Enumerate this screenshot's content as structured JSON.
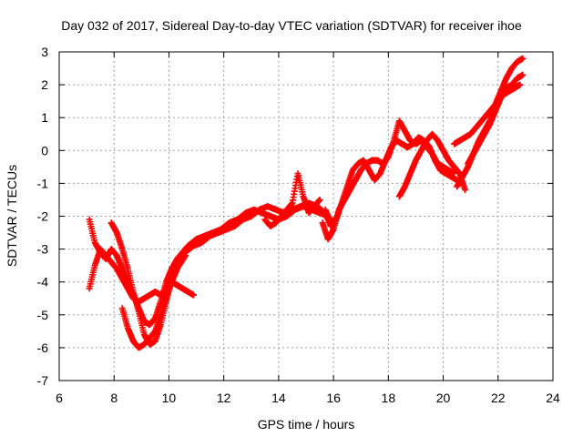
{
  "chart_data": {
    "type": "scatter",
    "title": "Day 032 of 2017, Sidereal Day-to-day VTEC variation (SDTVAR) for receiver ihoe",
    "xlabel": "GPS time / hours",
    "ylabel": "SDTVAR / TECUs",
    "xlim": [
      6,
      24
    ],
    "ylim": [
      -7,
      3
    ],
    "xticks": [
      6,
      8,
      10,
      12,
      14,
      16,
      18,
      20,
      22,
      24
    ],
    "yticks": [
      -7,
      -6,
      -5,
      -4,
      -3,
      -2,
      -1,
      0,
      1,
      2,
      3
    ],
    "grid": true,
    "marker": "+",
    "color": "#ff0000",
    "series": [
      {
        "x": [
          7.1,
          7.3,
          7.5,
          7.7,
          7.9,
          8.1,
          8.3,
          8.5,
          8.7,
          8.9,
          9.1,
          9.3,
          9.5,
          9.7,
          9.9,
          10.1,
          10.3,
          10.5,
          10.7,
          10.9
        ],
        "y": [
          -4.2,
          -3.5,
          -3.0,
          -3.2,
          -3.4,
          -3.6,
          -3.9,
          -4.2,
          -4.5,
          -4.6,
          -4.5,
          -4.4,
          -4.3,
          -4.4,
          -4.2,
          -4.0,
          -4.1,
          -4.2,
          -4.3,
          -4.4
        ]
      },
      {
        "x": [
          7.1,
          7.3,
          7.5,
          7.7,
          7.9,
          8.1,
          8.3,
          8.5,
          8.7,
          8.9,
          9.1,
          9.3,
          9.5,
          9.7,
          9.9,
          10.1,
          10.3,
          10.5,
          10.7,
          11.0,
          11.3,
          11.6,
          11.9,
          12.2,
          12.5,
          12.8,
          13.1,
          13.4,
          13.7,
          14.0,
          14.3,
          14.6,
          14.9,
          15.2,
          15.5,
          15.8,
          16.0
        ],
        "y": [
          -2.1,
          -2.8,
          -3.1,
          -3.3,
          -3.0,
          -3.2,
          -3.6,
          -4.0,
          -4.4,
          -4.8,
          -5.2,
          -5.3,
          -5.1,
          -4.6,
          -4.0,
          -3.6,
          -3.3,
          -3.1,
          -2.9,
          -2.7,
          -2.6,
          -2.5,
          -2.4,
          -2.2,
          -2.1,
          -1.9,
          -1.8,
          -1.9,
          -2.0,
          -2.1,
          -2.0,
          -1.8,
          -1.7,
          -1.8,
          -1.9,
          -2.0,
          -2.2
        ]
      },
      {
        "x": [
          7.9,
          8.1,
          8.3,
          8.5,
          8.7,
          8.9,
          9.1,
          9.3,
          9.5,
          9.7,
          9.9,
          10.1,
          10.3,
          10.6,
          10.9,
          11.2,
          11.5,
          11.8,
          12.1,
          12.4,
          12.7,
          13.0,
          13.3,
          13.6,
          13.9,
          14.2,
          14.5,
          14.8,
          15.1,
          15.4,
          15.7,
          15.9
        ],
        "y": [
          -2.2,
          -2.5,
          -3.0,
          -3.6,
          -4.3,
          -4.9,
          -5.6,
          -5.9,
          -5.8,
          -5.3,
          -4.6,
          -3.9,
          -3.4,
          -3.1,
          -2.9,
          -2.8,
          -2.6,
          -2.5,
          -2.4,
          -2.3,
          -2.1,
          -2.0,
          -1.8,
          -1.7,
          -1.8,
          -1.9,
          -1.8,
          -1.7,
          -1.6,
          -1.7,
          -1.9,
          -2.3
        ]
      },
      {
        "x": [
          8.3,
          8.5,
          8.7,
          8.9,
          9.1,
          9.3,
          9.5,
          9.7,
          9.9,
          10.1,
          10.3,
          10.6
        ],
        "y": [
          -4.8,
          -5.4,
          -5.8,
          -6.0,
          -5.9,
          -5.7,
          -5.5,
          -5.0,
          -4.5,
          -4.0,
          -3.6,
          -3.2
        ]
      },
      {
        "x": [
          15.6,
          15.8,
          16.0,
          16.2,
          16.4,
          16.6,
          16.8,
          17.0,
          17.2,
          17.4,
          17.6,
          17.8,
          18.0,
          18.2,
          18.4,
          18.6,
          18.8,
          19.0,
          19.2,
          19.4,
          19.6,
          19.8,
          20.0,
          20.2,
          20.4
        ],
        "y": [
          -2.2,
          -2.7,
          -2.4,
          -1.8,
          -1.5,
          -1.2,
          -0.9,
          -0.6,
          -0.4,
          -0.3,
          -0.3,
          -0.4,
          -0.2,
          0.3,
          0.9,
          0.6,
          0.3,
          0.2,
          0.3,
          0.1,
          -0.1,
          -0.4,
          -0.5,
          -0.6,
          -0.7
        ]
      },
      {
        "x": [
          15.7,
          15.9,
          16.1,
          16.3,
          16.5,
          16.7,
          16.9,
          17.1,
          17.3,
          17.5,
          17.7,
          17.9,
          18.1,
          18.3,
          18.5,
          18.7,
          18.9,
          19.1,
          19.3,
          19.5,
          19.7,
          19.9,
          20.1,
          20.3,
          20.5
        ],
        "y": [
          -1.8,
          -2.2,
          -2.1,
          -1.6,
          -1.1,
          -0.6,
          -0.4,
          -0.3,
          -0.6,
          -0.9,
          -0.7,
          -0.3,
          0.1,
          0.3,
          0.2,
          0.1,
          0.2,
          0.4,
          0.3,
          0.1,
          -0.3,
          -0.6,
          -0.7,
          -0.8,
          -0.9
        ]
      },
      {
        "x": [
          18.4,
          18.6,
          18.8,
          19.0,
          19.2,
          19.4,
          19.6,
          19.8,
          20.0,
          20.2,
          20.4,
          20.6,
          20.8
        ],
        "y": [
          -1.4,
          -1.1,
          -0.7,
          -0.3,
          0.0,
          0.3,
          0.5,
          0.3,
          0.0,
          -0.3,
          -0.5,
          -0.7,
          -1.2
        ]
      },
      {
        "x": [
          20.4,
          20.6,
          20.8,
          21.0,
          21.2,
          21.4,
          21.6,
          21.8,
          22.0,
          22.2,
          22.4,
          22.6,
          22.8
        ],
        "y": [
          0.2,
          0.3,
          0.4,
          0.5,
          0.7,
          0.9,
          1.1,
          1.3,
          1.5,
          1.7,
          1.8,
          1.9,
          2.0
        ]
      },
      {
        "x": [
          20.5,
          20.7,
          20.9,
          21.1,
          21.3,
          21.5,
          21.7,
          21.9,
          22.1,
          22.3,
          22.5,
          22.7,
          22.9
        ],
        "y": [
          -1.1,
          -0.8,
          -0.5,
          -0.1,
          0.3,
          0.6,
          0.9,
          1.4,
          1.8,
          2.2,
          2.5,
          2.7,
          2.8
        ]
      },
      {
        "x": [
          20.9,
          21.1,
          21.3,
          21.5,
          21.7,
          21.9,
          22.1,
          22.3,
          22.5,
          22.7,
          22.9
        ],
        "y": [
          -0.4,
          -0.1,
          0.2,
          0.5,
          0.8,
          1.2,
          1.6,
          1.9,
          2.0,
          2.2,
          2.3
        ]
      },
      {
        "x": [
          13.5,
          13.7,
          13.9,
          14.1,
          14.3,
          14.5,
          14.7,
          14.9,
          15.1,
          15.3,
          15.5
        ],
        "y": [
          -2.1,
          -2.3,
          -2.2,
          -2.0,
          -1.8,
          -1.6,
          -0.7,
          -1.4,
          -1.9,
          -1.7,
          -1.5
        ]
      }
    ]
  }
}
